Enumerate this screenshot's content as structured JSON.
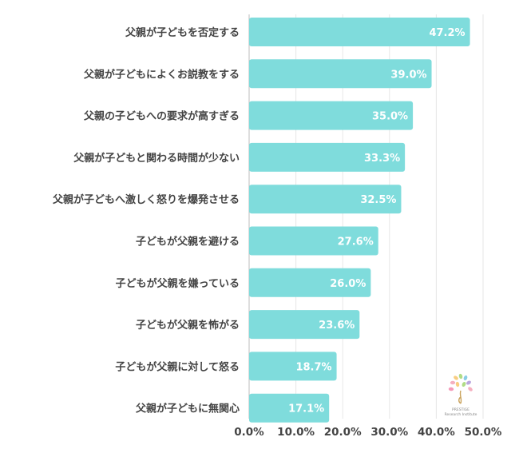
{
  "chart_data": {
    "type": "bar",
    "orientation": "horizontal",
    "categories": [
      "父親が子どもを否定する",
      "父親が子どもによくお説教をする",
      "父親の子どもへの要求が高すぎる",
      "父親が子どもと関わる時間が少ない",
      "父親が子どもへ激しく怒りを爆発させる",
      "子どもが父親を避ける",
      "子どもが父親を嫌っている",
      "子どもが父親を怖がる",
      "子どもが父親に対して怒る",
      "父親が子どもに無関心"
    ],
    "values": [
      47.2,
      39.0,
      35.0,
      33.3,
      32.5,
      27.6,
      26.0,
      23.6,
      18.7,
      17.1
    ],
    "value_labels": [
      "47.2%",
      "39.0%",
      "35.0%",
      "33.3%",
      "32.5%",
      "27.6%",
      "26.0%",
      "23.6%",
      "18.7%",
      "17.1%"
    ],
    "xlim": [
      0,
      50
    ],
    "x_ticks": [
      0,
      10,
      20,
      30,
      40,
      50
    ],
    "x_tick_labels": [
      "0.0%",
      "10.0%",
      "20.0%",
      "30.0%",
      "40.0%",
      "50.0%"
    ],
    "grid": true,
    "bar_color": "#7fdcdc",
    "title": "",
    "xlabel": "",
    "ylabel": ""
  },
  "logo": {
    "line1": "PRESTIGE",
    "line2": "Research Institute",
    "colors": [
      "#f4a7b9",
      "#f7c873",
      "#a8d87a",
      "#7ec8e3",
      "#b39ddb",
      "#f48fb1"
    ]
  }
}
